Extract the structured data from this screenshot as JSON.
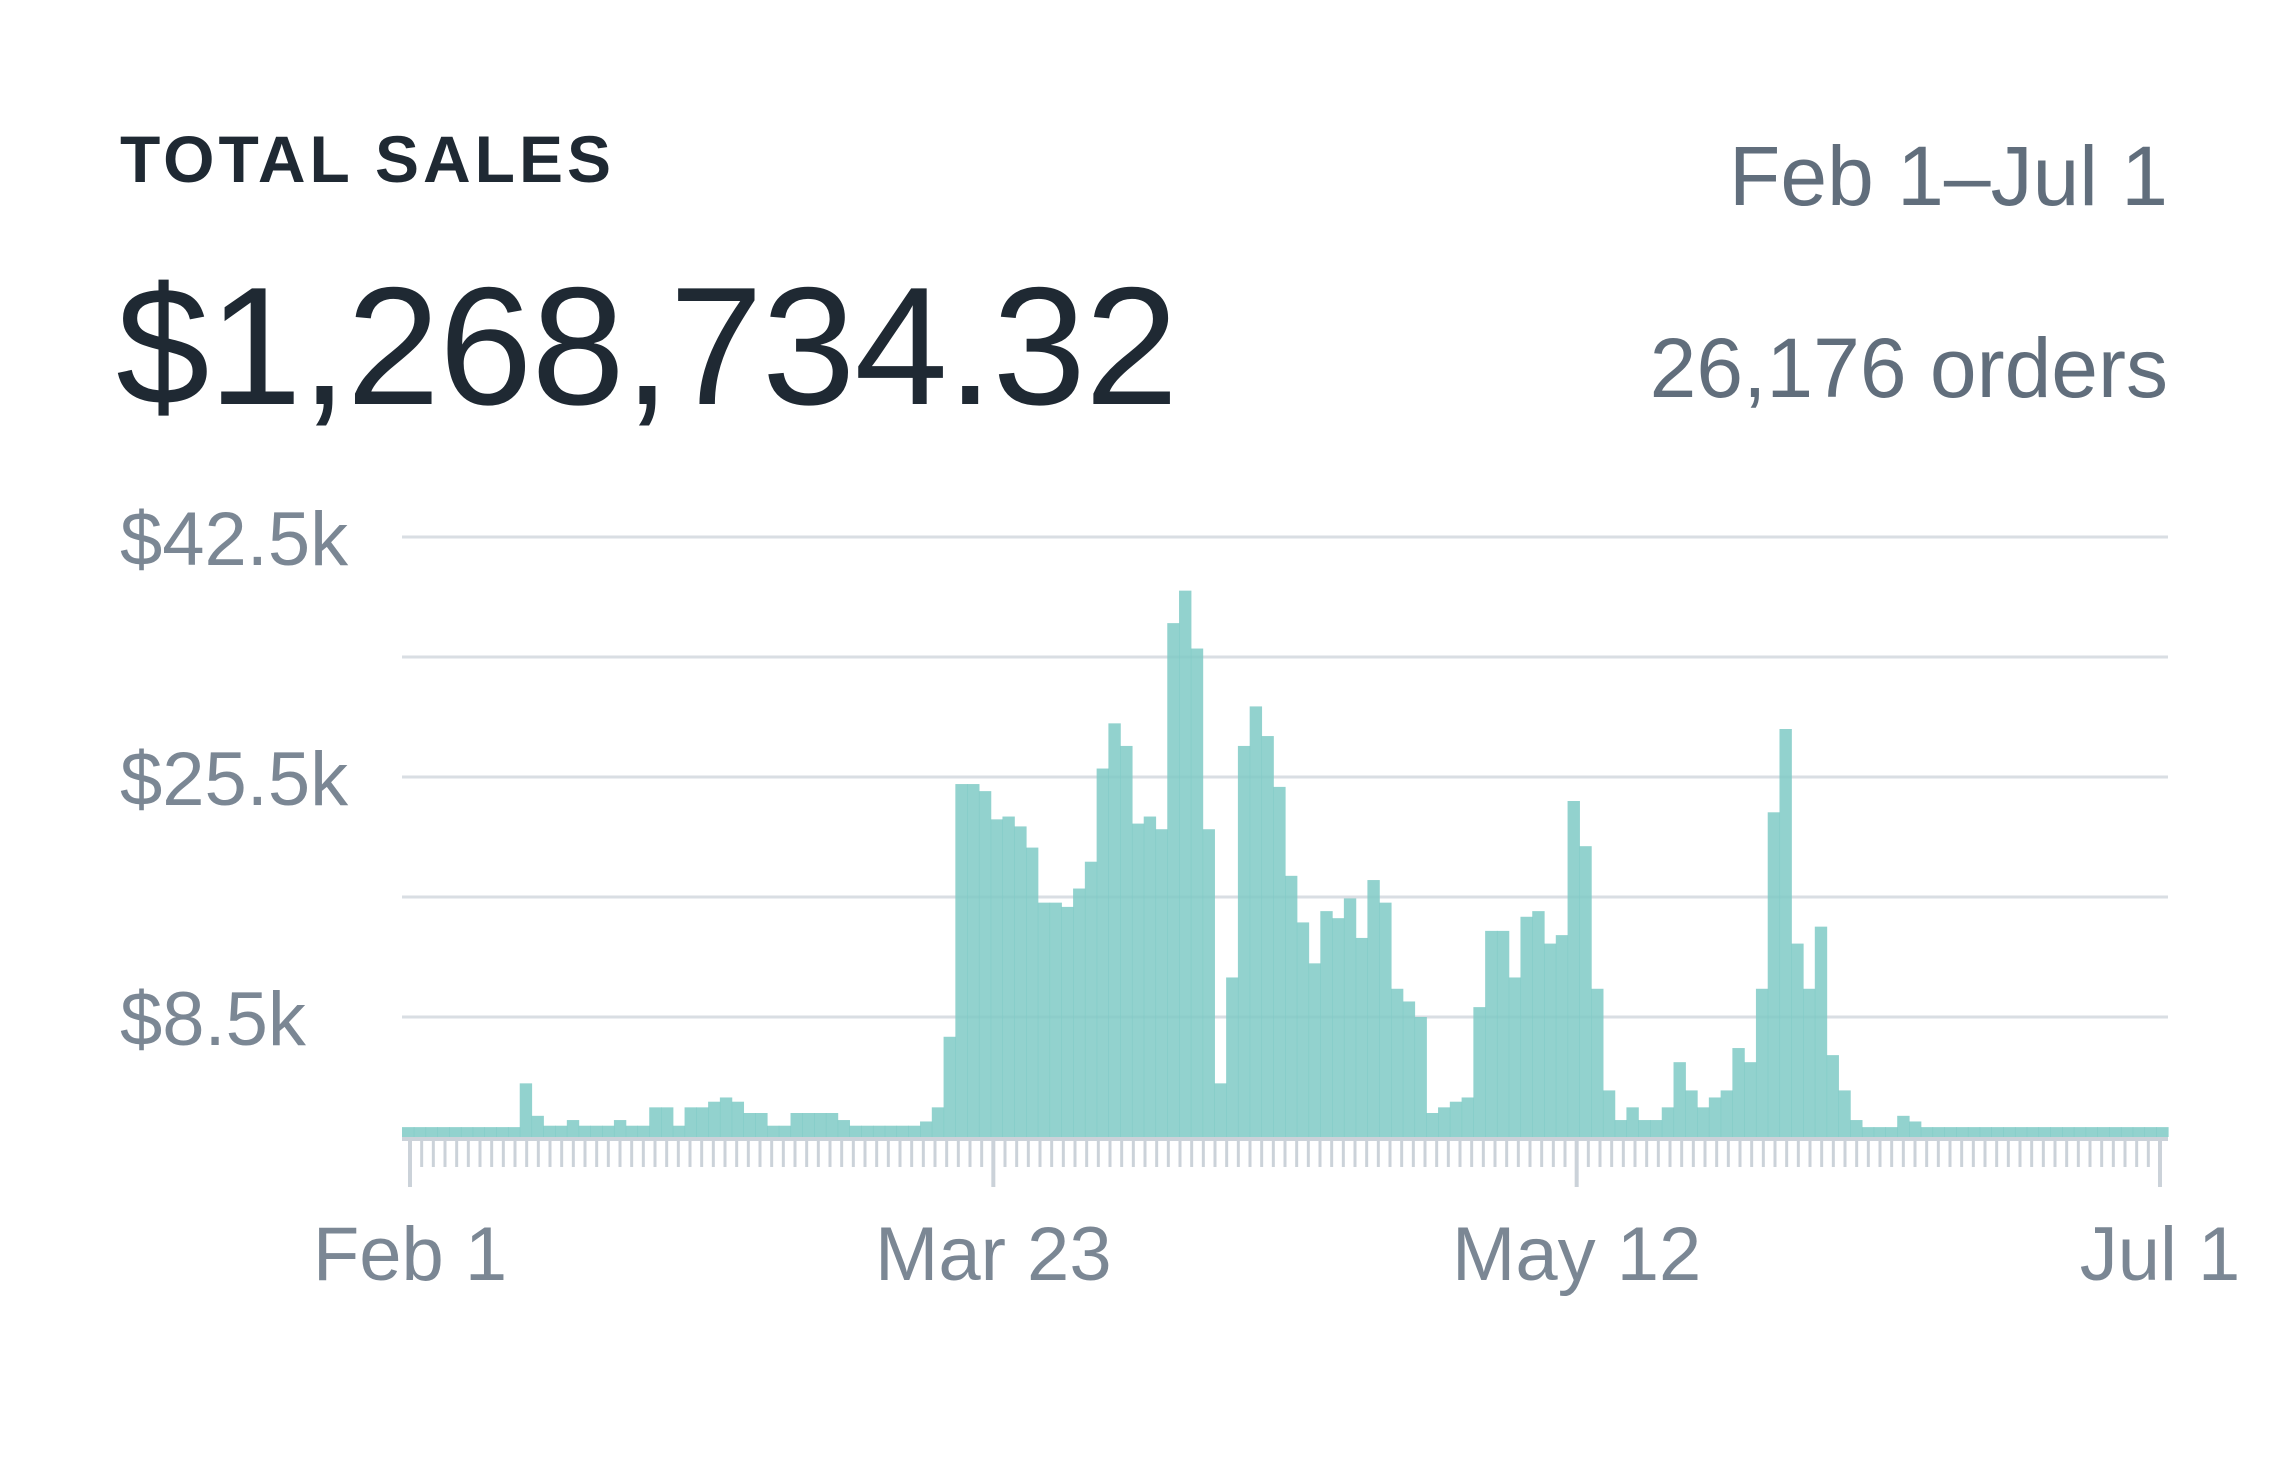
{
  "header": {
    "title": "TOTAL SALES",
    "total": "$1,268,734.32",
    "date_range": "Feb 1–Jul 1",
    "orders": "26,176 orders"
  },
  "colors": {
    "bar": "#7fcac5",
    "bar_opacity": 0.85,
    "grid": "#d9dee3",
    "axis": "#cbd2d9",
    "text_dark": "#1f2933",
    "text_muted": "#7b8794"
  },
  "chart_data": {
    "type": "bar",
    "x_start": "Feb 1",
    "x_end": "Jul 1",
    "x_tick_labels": [
      "Feb 1",
      "Mar 23",
      "May 12",
      "Jul 1"
    ],
    "y_tick_labels": [
      "$8.5k",
      "$25.5k",
      "$42.5k"
    ],
    "y_ticks": [
      8500,
      25500,
      42500
    ],
    "y_gridlines": [
      8500,
      17000,
      25500,
      34000,
      42500
    ],
    "ylim": [
      0,
      42500
    ],
    "grid": true,
    "values": [
      700,
      700,
      700,
      700,
      700,
      700,
      700,
      700,
      700,
      700,
      3800,
      1500,
      800,
      800,
      1200,
      800,
      800,
      800,
      1200,
      800,
      800,
      2100,
      2100,
      800,
      2100,
      2100,
      2500,
      2800,
      2500,
      1700,
      1700,
      800,
      800,
      1700,
      1700,
      1700,
      1700,
      1200,
      800,
      800,
      800,
      800,
      800,
      800,
      1100,
      2100,
      7100,
      25000,
      25000,
      24500,
      22500,
      22700,
      22000,
      20500,
      16600,
      16600,
      16300,
      17600,
      19500,
      26100,
      29300,
      27700,
      22200,
      22700,
      21800,
      36400,
      38700,
      34600,
      21800,
      3800,
      11300,
      27700,
      30500,
      28400,
      24800,
      18500,
      15200,
      12300,
      16000,
      15500,
      16900,
      14100,
      18200,
      16600,
      10500,
      9600,
      8500,
      1700,
      2100,
      2500,
      2800,
      9200,
      14600,
      14600,
      11300,
      15600,
      16000,
      13700,
      14300,
      23800,
      20600,
      10500,
      3300,
      1200,
      2100,
      1200,
      1200,
      2100,
      5300,
      3300,
      2100,
      2800,
      3300,
      6300,
      5300,
      10500,
      23000,
      28900,
      13700,
      10500,
      14900,
      5800,
      3300,
      1200,
      700,
      700,
      700,
      1500,
      1100,
      700,
      700,
      700,
      700,
      700,
      700,
      700,
      700,
      700,
      700,
      700,
      700,
      700,
      700,
      700,
      700,
      700,
      700,
      700,
      700,
      700
    ]
  }
}
